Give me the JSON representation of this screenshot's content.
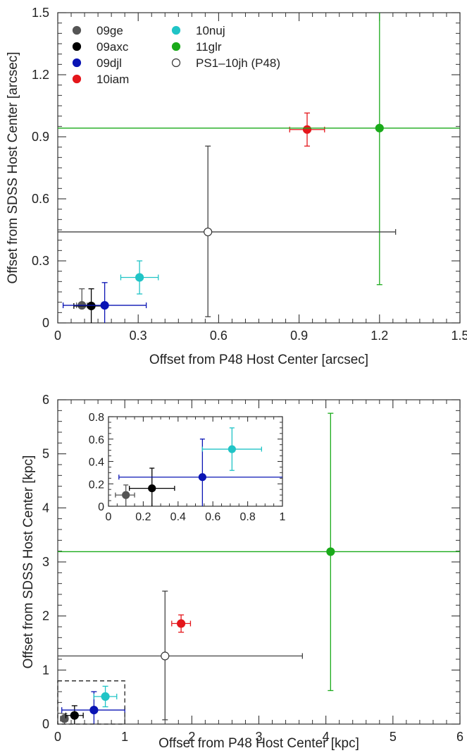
{
  "chart_data": [
    {
      "type": "scatter",
      "xlabel": "Offset from P48 Host Center [arcsec]",
      "ylabel": "Offset from SDSS Host Center [arcsec]",
      "xlim": [
        0,
        1.5
      ],
      "ylim": [
        0,
        1.5
      ],
      "xticks": [
        "0",
        "0.3",
        "0.6",
        "0.9",
        "1.2",
        "1.5"
      ],
      "yticks": [
        "0",
        "0.3",
        "0.6",
        "0.9",
        "1.2",
        "1.5"
      ],
      "legend_position": "top-left",
      "series": [
        {
          "name": "09ge",
          "color": "#555555",
          "filled": true,
          "x": 0.09,
          "y": 0.085,
          "xerr": [
            0.07,
            0.11
          ],
          "yerr": [
            0.085,
            0.165
          ]
        },
        {
          "name": "09axc",
          "color": "#000000",
          "filled": true,
          "x": 0.125,
          "y": 0.082,
          "xerr": [
            0.06,
            0.18
          ],
          "yerr": [
            0.0,
            0.165
          ]
        },
        {
          "name": "09djl",
          "color": "#0a14b4",
          "filled": true,
          "x": 0.175,
          "y": 0.085,
          "xerr": [
            0.02,
            0.33
          ],
          "yerr": [
            0.0,
            0.195
          ]
        },
        {
          "name": "10iam",
          "color": "#e4161b",
          "filled": true,
          "x": 0.93,
          "y": 0.935,
          "xerr": [
            0.865,
            0.995
          ],
          "yerr": [
            0.855,
            1.015
          ]
        },
        {
          "name": "10nuj",
          "color": "#20c4c6",
          "filled": true,
          "x": 0.305,
          "y": 0.22,
          "xerr": [
            0.235,
            0.375
          ],
          "yerr": [
            0.14,
            0.3
          ]
        },
        {
          "name": "11glr",
          "color": "#1aaa1a",
          "filled": true,
          "x": 1.2,
          "y": 0.942,
          "xerr": [
            0.0,
            1.5
          ],
          "yerr": [
            0.185,
            1.5
          ]
        },
        {
          "name": "PS1–10jh (P48)",
          "color": "#444444",
          "filled": false,
          "x": 0.56,
          "y": 0.44,
          "xerr": [
            0.0,
            1.26
          ],
          "yerr": [
            0.03,
            0.855
          ]
        }
      ]
    },
    {
      "type": "scatter",
      "xlabel": "Offset from P48 Host Center [kpc]",
      "ylabel": "Offset from SDSS Host Center [kpc]",
      "xlim": [
        0,
        6
      ],
      "ylim": [
        0,
        6
      ],
      "xticks": [
        "0",
        "1",
        "2",
        "3",
        "4",
        "5",
        "6"
      ],
      "yticks": [
        "0",
        "1",
        "2",
        "3",
        "4",
        "5",
        "6"
      ],
      "series": [
        {
          "name": "09ge",
          "color": "#555555",
          "filled": true,
          "x": 0.1,
          "y": 0.1,
          "xerr": [
            0.04,
            0.15
          ],
          "yerr": [
            0.0,
            0.19
          ]
        },
        {
          "name": "09axc",
          "color": "#000000",
          "filled": true,
          "x": 0.25,
          "y": 0.16,
          "xerr": [
            0.12,
            0.38
          ],
          "yerr": [
            0.0,
            0.34
          ]
        },
        {
          "name": "09djl",
          "color": "#0a14b4",
          "filled": true,
          "x": 0.54,
          "y": 0.26,
          "xerr": [
            0.06,
            1.0
          ],
          "yerr": [
            0.0,
            0.6
          ]
        },
        {
          "name": "10iam",
          "color": "#e4161b",
          "filled": true,
          "x": 1.84,
          "y": 1.86,
          "xerr": [
            1.7,
            1.98
          ],
          "yerr": [
            1.7,
            2.02
          ]
        },
        {
          "name": "10nuj",
          "color": "#20c4c6",
          "filled": true,
          "x": 0.71,
          "y": 0.51,
          "xerr": [
            0.54,
            0.88
          ],
          "yerr": [
            0.32,
            0.7
          ]
        },
        {
          "name": "11glr",
          "color": "#1aaa1a",
          "filled": true,
          "x": 4.07,
          "y": 3.19,
          "xerr": [
            0.0,
            6.0
          ],
          "yerr": [
            0.62,
            5.75
          ]
        },
        {
          "name": "PS1–10jh (P48)",
          "color": "#444444",
          "filled": false,
          "x": 1.6,
          "y": 1.26,
          "xerr": [
            0.0,
            3.65
          ],
          "yerr": [
            0.08,
            2.46
          ]
        }
      ],
      "inset": {
        "xlim": [
          0,
          1
        ],
        "ylim": [
          0,
          0.8
        ],
        "xticks": [
          "0",
          "0.2",
          "0.4",
          "0.6",
          "0.8",
          "1"
        ],
        "yticks": [
          "0",
          "0.2",
          "0.4",
          "0.6",
          "0.8"
        ]
      },
      "zoom_region": {
        "x": [
          0,
          1
        ],
        "y": [
          0,
          0.8
        ]
      }
    }
  ]
}
